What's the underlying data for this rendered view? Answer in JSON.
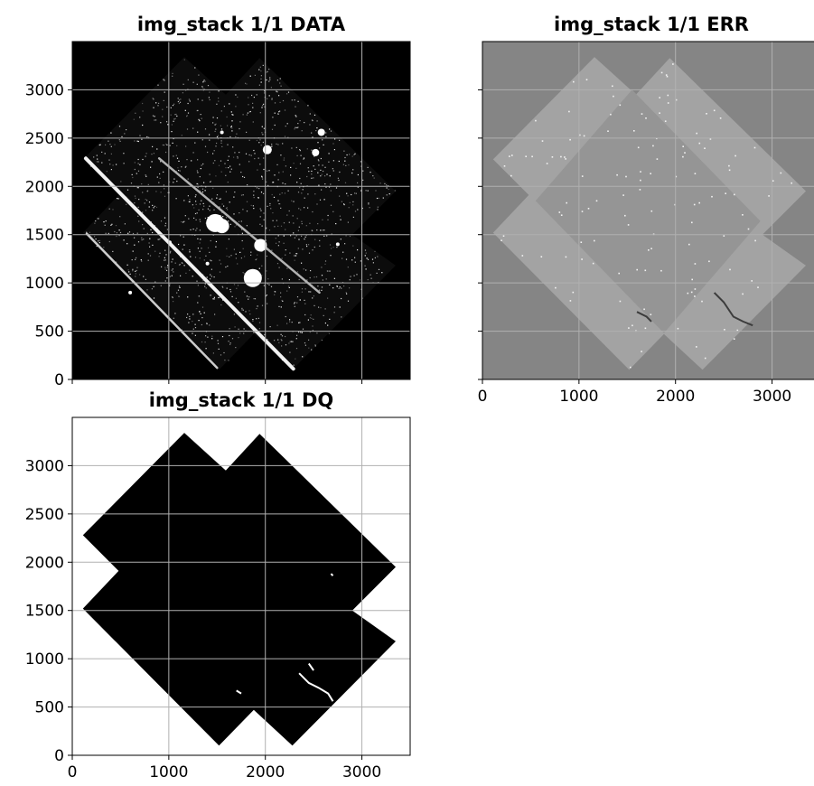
{
  "chart_data": [
    {
      "type": "heatmap",
      "title": "img_stack 1/1 DATA",
      "colormap": "gray",
      "background": "#000000",
      "xlim": [
        0,
        3500
      ],
      "ylim": [
        0,
        3500
      ],
      "x_ticks": [
        0,
        1000,
        2000,
        3000
      ],
      "y_ticks": [
        0,
        500,
        1000,
        1500,
        2000,
        2500,
        3000
      ],
      "x_tick_labels_visible": false,
      "y_tick_labels_visible": true,
      "grid": true,
      "image_outline": [
        [
          1160,
          3340
        ],
        [
          1590,
          2950
        ],
        [
          1940,
          3330
        ],
        [
          3350,
          1950
        ],
        [
          2900,
          1500
        ],
        [
          3350,
          1180
        ],
        [
          2280,
          100
        ],
        [
          1880,
          470
        ],
        [
          1520,
          100
        ],
        [
          110,
          1520
        ],
        [
          480,
          1910
        ],
        [
          110,
          2280
        ]
      ],
      "streaks": [
        {
          "from": [
            140,
            2290
          ],
          "to": [
            2290,
            110
          ],
          "brightness": 0.95
        },
        {
          "from": [
            150,
            1510
          ],
          "to": [
            1500,
            120
          ],
          "brightness": 0.8
        },
        {
          "from": [
            900,
            2290
          ],
          "to": [
            2560,
            900
          ],
          "brightness": 0.7
        }
      ],
      "sources": [
        [
          1480,
          1620,
          10
        ],
        [
          1550,
          1590,
          8
        ],
        [
          1950,
          1390,
          7
        ],
        [
          1870,
          1050,
          10
        ],
        [
          2020,
          2380,
          5
        ],
        [
          2580,
          2560,
          4
        ],
        [
          2520,
          2350,
          4
        ],
        [
          1550,
          2560,
          2
        ],
        [
          600,
          900,
          2
        ],
        [
          2750,
          1400,
          2
        ],
        [
          1010,
          1420,
          2
        ],
        [
          1400,
          1200,
          2
        ]
      ]
    },
    {
      "type": "heatmap",
      "title": "img_stack 1/1 ERR",
      "colormap": "gray",
      "background": "#858585",
      "xlim": [
        0,
        3500
      ],
      "ylim": [
        0,
        3500
      ],
      "x_ticks": [
        0,
        1000,
        2000,
        3000
      ],
      "y_ticks": [
        0,
        500,
        1000,
        1500,
        2000,
        2500,
        3000
      ],
      "x_tick_labels_visible": true,
      "y_tick_labels_visible": false,
      "grid": true,
      "image_outline": [
        [
          1160,
          3340
        ],
        [
          1590,
          2950
        ],
        [
          1940,
          3330
        ],
        [
          3350,
          1950
        ],
        [
          2900,
          1500
        ],
        [
          3350,
          1180
        ],
        [
          2280,
          100
        ],
        [
          1880,
          470
        ],
        [
          1520,
          100
        ],
        [
          110,
          1520
        ],
        [
          480,
          1910
        ],
        [
          110,
          2280
        ]
      ],
      "inner_overlap": [
        [
          1550,
          3000
        ],
        [
          2880,
          1640
        ],
        [
          1880,
          480
        ],
        [
          550,
          1850
        ]
      ],
      "dark_features": [
        [
          [
            2400,
            900
          ],
          [
            2500,
            800
          ],
          [
            2600,
            650
          ],
          [
            2700,
            600
          ],
          [
            2800,
            560
          ]
        ],
        [
          [
            1600,
            700
          ],
          [
            1700,
            650
          ],
          [
            1750,
            600
          ]
        ]
      ]
    },
    {
      "type": "heatmap",
      "title": "img_stack 1/1 DQ",
      "colormap": "gray",
      "background": "#ffffff",
      "xlim": [
        0,
        3500
      ],
      "ylim": [
        0,
        3500
      ],
      "x_ticks": [
        0,
        1000,
        2000,
        3000
      ],
      "y_ticks": [
        0,
        500,
        1000,
        1500,
        2000,
        2500,
        3000
      ],
      "x_tick_labels_visible": true,
      "y_tick_labels_visible": true,
      "grid": true,
      "image_outline": [
        [
          1160,
          3340
        ],
        [
          1590,
          2950
        ],
        [
          1940,
          3330
        ],
        [
          3350,
          1950
        ],
        [
          2900,
          1500
        ],
        [
          3350,
          1180
        ],
        [
          2280,
          100
        ],
        [
          1880,
          470
        ],
        [
          1520,
          100
        ],
        [
          110,
          1520
        ],
        [
          480,
          1910
        ],
        [
          110,
          2280
        ]
      ],
      "flag_marks": [
        [
          [
            2350,
            850
          ],
          [
            2450,
            750
          ],
          [
            2550,
            700
          ],
          [
            2650,
            640
          ],
          [
            2700,
            560
          ]
        ],
        [
          [
            2450,
            950
          ],
          [
            2500,
            880
          ]
        ],
        [
          [
            1700,
            670
          ],
          [
            1750,
            640
          ]
        ],
        [
          [
            2680,
            1880
          ],
          [
            2700,
            1860
          ]
        ],
        [
          [
            3000,
            1560
          ],
          [
            3020,
            1540
          ]
        ]
      ]
    }
  ]
}
